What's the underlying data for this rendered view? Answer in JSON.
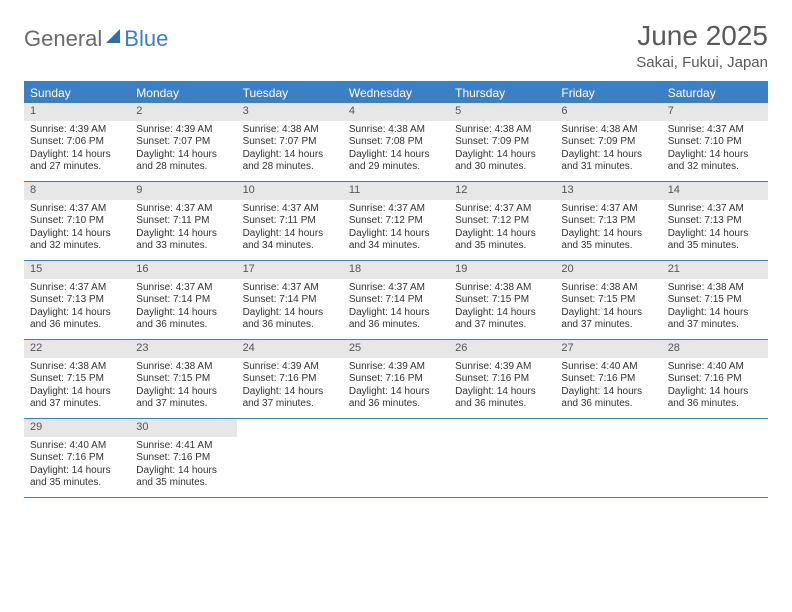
{
  "logo": {
    "text1": "General",
    "text2": "Blue"
  },
  "title": "June 2025",
  "location": "Sakai, Fukui, Japan",
  "colors": {
    "accent": "#3b7fc4",
    "header_text": "#ffffff",
    "daynum_bg": "#e7e7e7",
    "text": "#333333",
    "muted": "#5a5a5a"
  },
  "day_headers": [
    "Sunday",
    "Monday",
    "Tuesday",
    "Wednesday",
    "Thursday",
    "Friday",
    "Saturday"
  ],
  "weeks": [
    [
      {
        "n": "1",
        "sr": "4:39 AM",
        "ss": "7:06 PM",
        "dl": "14 hours and 27 minutes."
      },
      {
        "n": "2",
        "sr": "4:39 AM",
        "ss": "7:07 PM",
        "dl": "14 hours and 28 minutes."
      },
      {
        "n": "3",
        "sr": "4:38 AM",
        "ss": "7:07 PM",
        "dl": "14 hours and 28 minutes."
      },
      {
        "n": "4",
        "sr": "4:38 AM",
        "ss": "7:08 PM",
        "dl": "14 hours and 29 minutes."
      },
      {
        "n": "5",
        "sr": "4:38 AM",
        "ss": "7:09 PM",
        "dl": "14 hours and 30 minutes."
      },
      {
        "n": "6",
        "sr": "4:38 AM",
        "ss": "7:09 PM",
        "dl": "14 hours and 31 minutes."
      },
      {
        "n": "7",
        "sr": "4:37 AM",
        "ss": "7:10 PM",
        "dl": "14 hours and 32 minutes."
      }
    ],
    [
      {
        "n": "8",
        "sr": "4:37 AM",
        "ss": "7:10 PM",
        "dl": "14 hours and 32 minutes."
      },
      {
        "n": "9",
        "sr": "4:37 AM",
        "ss": "7:11 PM",
        "dl": "14 hours and 33 minutes."
      },
      {
        "n": "10",
        "sr": "4:37 AM",
        "ss": "7:11 PM",
        "dl": "14 hours and 34 minutes."
      },
      {
        "n": "11",
        "sr": "4:37 AM",
        "ss": "7:12 PM",
        "dl": "14 hours and 34 minutes."
      },
      {
        "n": "12",
        "sr": "4:37 AM",
        "ss": "7:12 PM",
        "dl": "14 hours and 35 minutes."
      },
      {
        "n": "13",
        "sr": "4:37 AM",
        "ss": "7:13 PM",
        "dl": "14 hours and 35 minutes."
      },
      {
        "n": "14",
        "sr": "4:37 AM",
        "ss": "7:13 PM",
        "dl": "14 hours and 35 minutes."
      }
    ],
    [
      {
        "n": "15",
        "sr": "4:37 AM",
        "ss": "7:13 PM",
        "dl": "14 hours and 36 minutes."
      },
      {
        "n": "16",
        "sr": "4:37 AM",
        "ss": "7:14 PM",
        "dl": "14 hours and 36 minutes."
      },
      {
        "n": "17",
        "sr": "4:37 AM",
        "ss": "7:14 PM",
        "dl": "14 hours and 36 minutes."
      },
      {
        "n": "18",
        "sr": "4:37 AM",
        "ss": "7:14 PM",
        "dl": "14 hours and 36 minutes."
      },
      {
        "n": "19",
        "sr": "4:38 AM",
        "ss": "7:15 PM",
        "dl": "14 hours and 37 minutes."
      },
      {
        "n": "20",
        "sr": "4:38 AM",
        "ss": "7:15 PM",
        "dl": "14 hours and 37 minutes."
      },
      {
        "n": "21",
        "sr": "4:38 AM",
        "ss": "7:15 PM",
        "dl": "14 hours and 37 minutes."
      }
    ],
    [
      {
        "n": "22",
        "sr": "4:38 AM",
        "ss": "7:15 PM",
        "dl": "14 hours and 37 minutes."
      },
      {
        "n": "23",
        "sr": "4:38 AM",
        "ss": "7:15 PM",
        "dl": "14 hours and 37 minutes."
      },
      {
        "n": "24",
        "sr": "4:39 AM",
        "ss": "7:16 PM",
        "dl": "14 hours and 37 minutes."
      },
      {
        "n": "25",
        "sr": "4:39 AM",
        "ss": "7:16 PM",
        "dl": "14 hours and 36 minutes."
      },
      {
        "n": "26",
        "sr": "4:39 AM",
        "ss": "7:16 PM",
        "dl": "14 hours and 36 minutes."
      },
      {
        "n": "27",
        "sr": "4:40 AM",
        "ss": "7:16 PM",
        "dl": "14 hours and 36 minutes."
      },
      {
        "n": "28",
        "sr": "4:40 AM",
        "ss": "7:16 PM",
        "dl": "14 hours and 36 minutes."
      }
    ],
    [
      {
        "n": "29",
        "sr": "4:40 AM",
        "ss": "7:16 PM",
        "dl": "14 hours and 35 minutes."
      },
      {
        "n": "30",
        "sr": "4:41 AM",
        "ss": "7:16 PM",
        "dl": "14 hours and 35 minutes."
      },
      null,
      null,
      null,
      null,
      null
    ]
  ],
  "labels": {
    "sunrise": "Sunrise:",
    "sunset": "Sunset:",
    "daylight": "Daylight:"
  }
}
